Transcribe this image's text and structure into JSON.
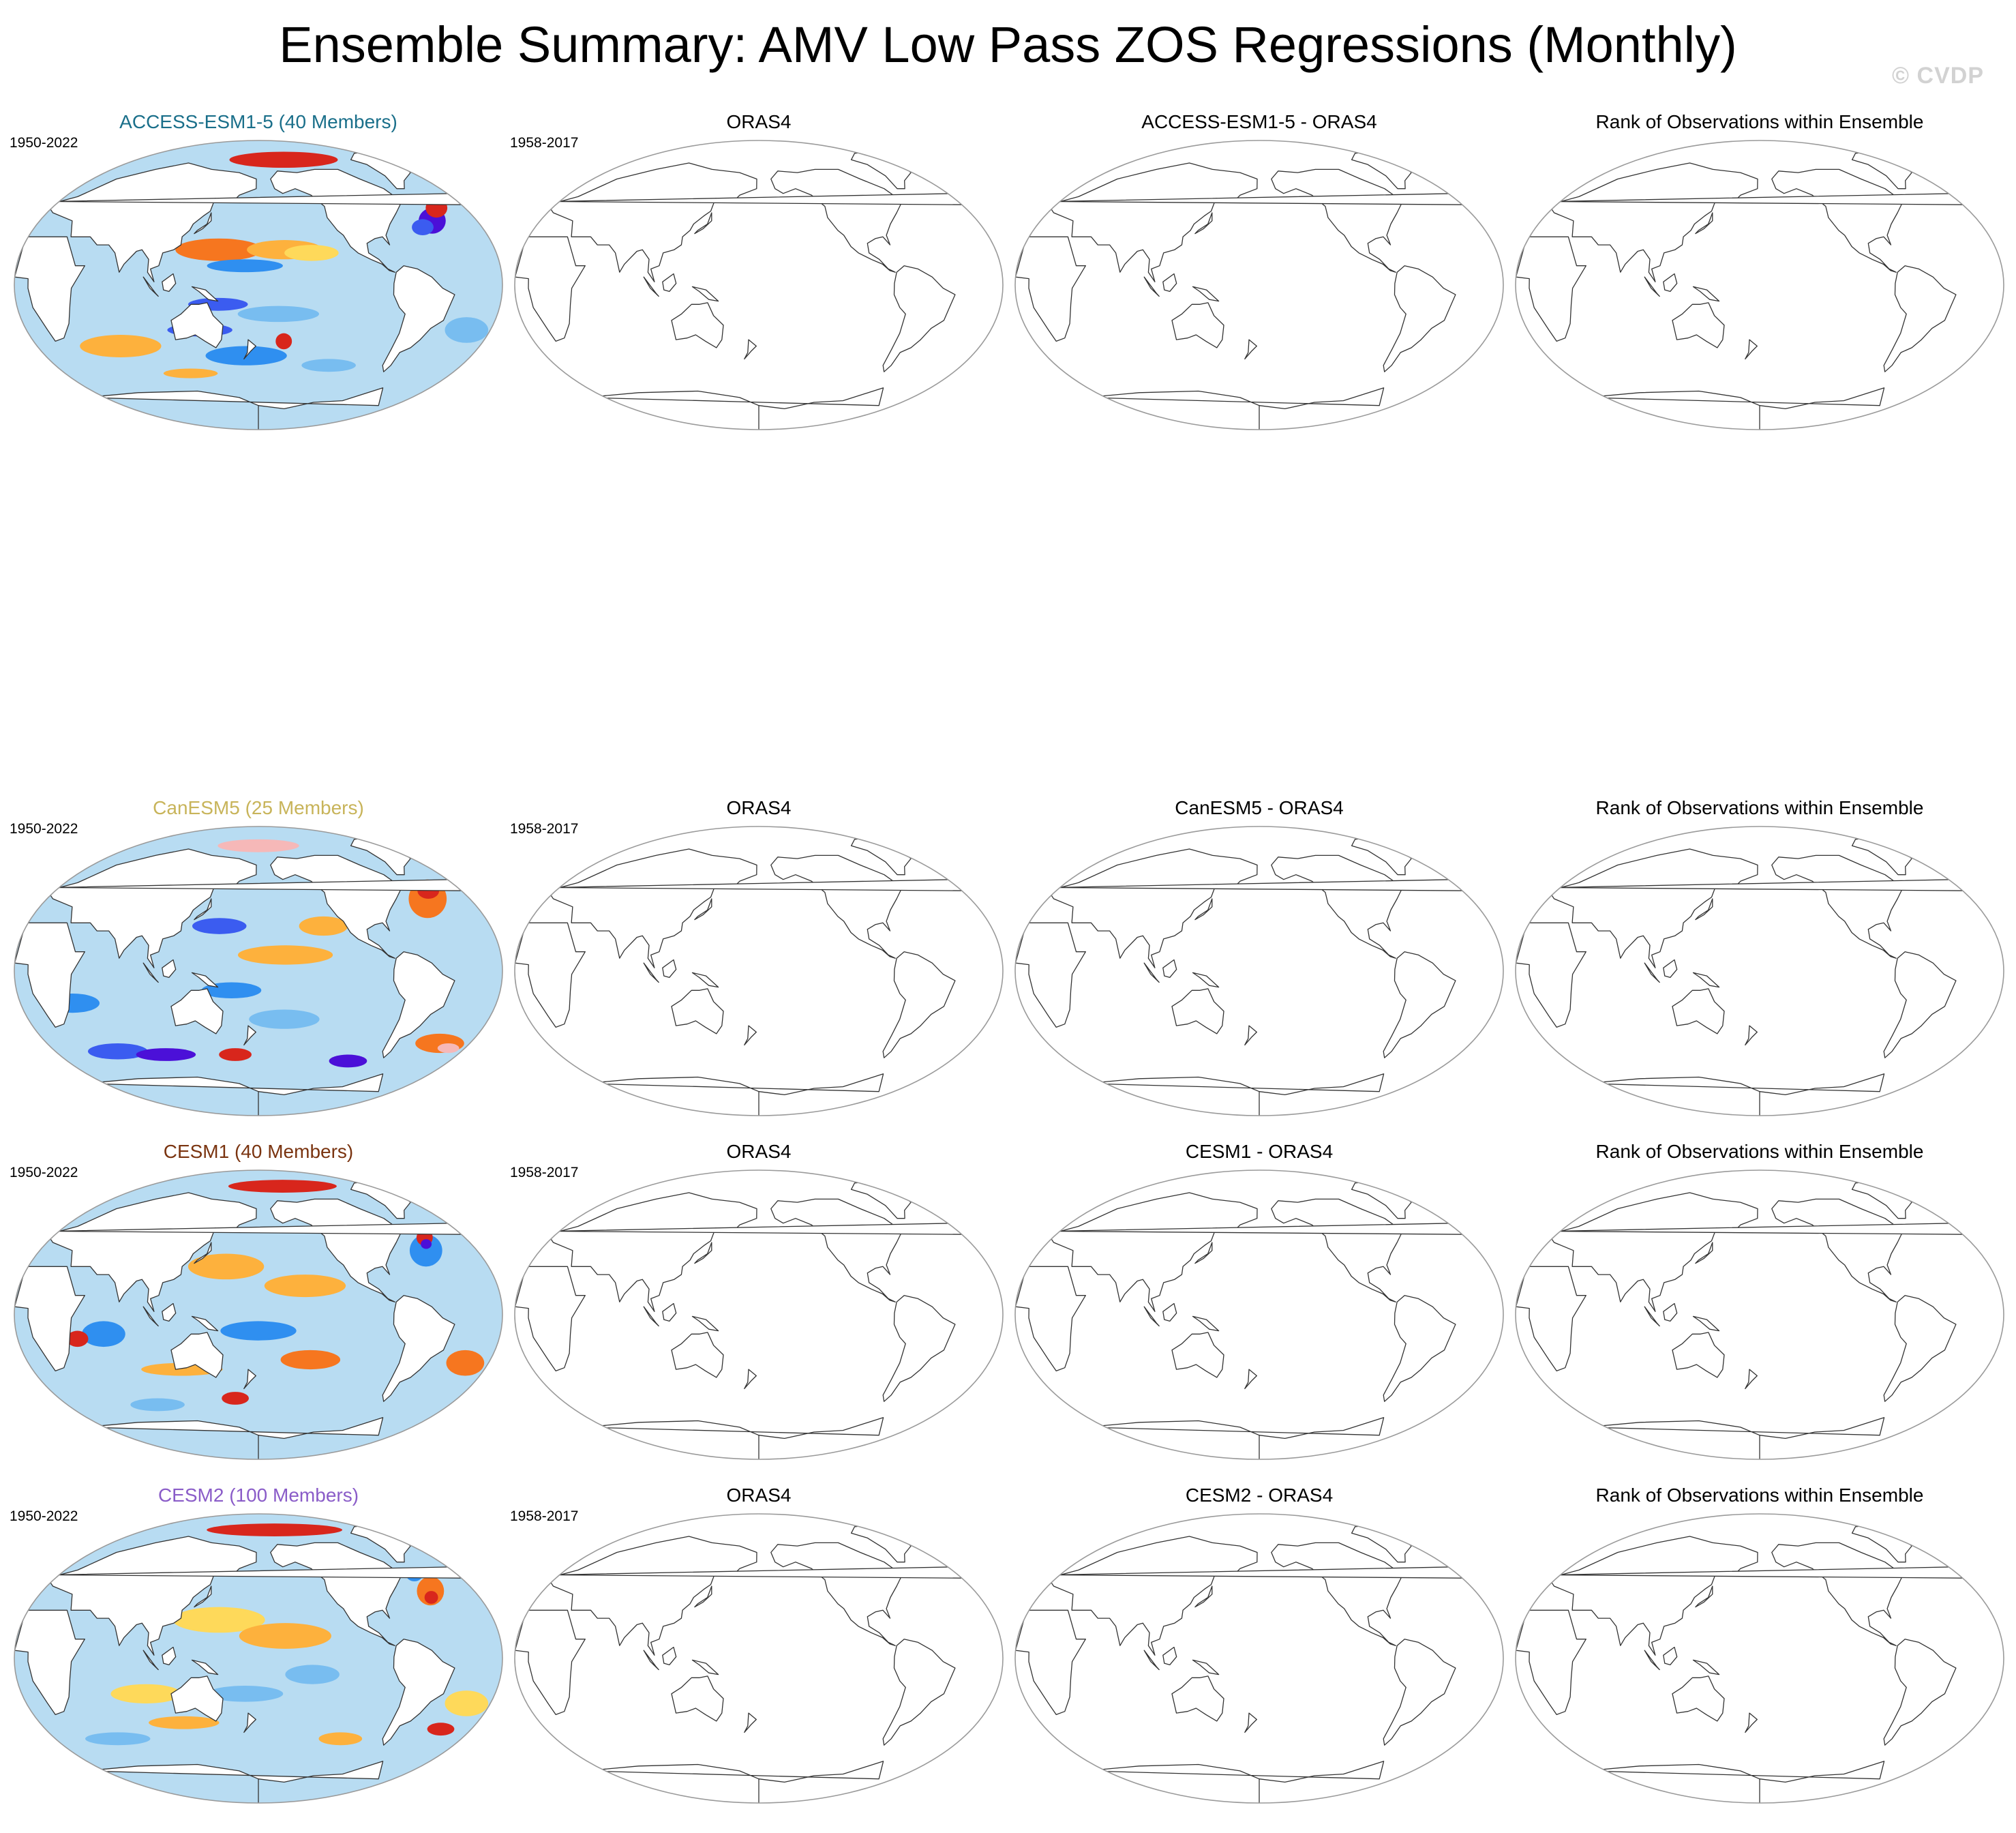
{
  "title": "Ensemble Summary: AMV Low Pass ZOS Regressions (Monthly)",
  "watermark": "© CVDP",
  "colors": {
    "ocean_scale": [
      "#4b10d8",
      "#3b5cf0",
      "#2f8ff0",
      "#78bdf0",
      "#b8dcf2",
      "#fff6a8",
      "#fed95a",
      "#fdb13d",
      "#f6761f",
      "#d8261c",
      "#f6b8b8"
    ],
    "coast": "#333333",
    "map_border": "#9a9a9a"
  },
  "rows": [
    {
      "model": {
        "label": "ACCESS-ESM1-5 (40 Members)",
        "years": "1950-2022",
        "color": "#1a6f8a"
      },
      "obs": {
        "label": "ORAS4",
        "years": "1958-2017"
      },
      "diff": {
        "label": "ACCESS-ESM1-5 - ORAS4"
      },
      "rank": {
        "label": "Rank of Observations within Ensemble"
      }
    },
    {
      "model": {
        "label": "CanESM5 (25 Members)",
        "years": "1950-2022",
        "color": "#c8b45a"
      },
      "obs": {
        "label": "ORAS4",
        "years": "1958-2017"
      },
      "diff": {
        "label": "CanESM5 - ORAS4"
      },
      "rank": {
        "label": "Rank of Observations within Ensemble"
      }
    },
    {
      "model": {
        "label": "CESM1 (40 Members)",
        "years": "1950-2022",
        "color": "#7a3410"
      },
      "obs": {
        "label": "ORAS4",
        "years": "1958-2017"
      },
      "diff": {
        "label": "CESM1 - ORAS4"
      },
      "rank": {
        "label": "Rank of Observations within Ensemble"
      }
    },
    {
      "model": {
        "label": "CESM2 (100 Members)",
        "years": "1950-2022",
        "color": "#8a5cc8"
      },
      "obs": {
        "label": "ORAS4",
        "years": "1958-2017"
      },
      "diff": {
        "label": "CESM2 - ORAS4"
      },
      "rank": {
        "label": "Rank of Observations within Ensemble"
      }
    }
  ]
}
